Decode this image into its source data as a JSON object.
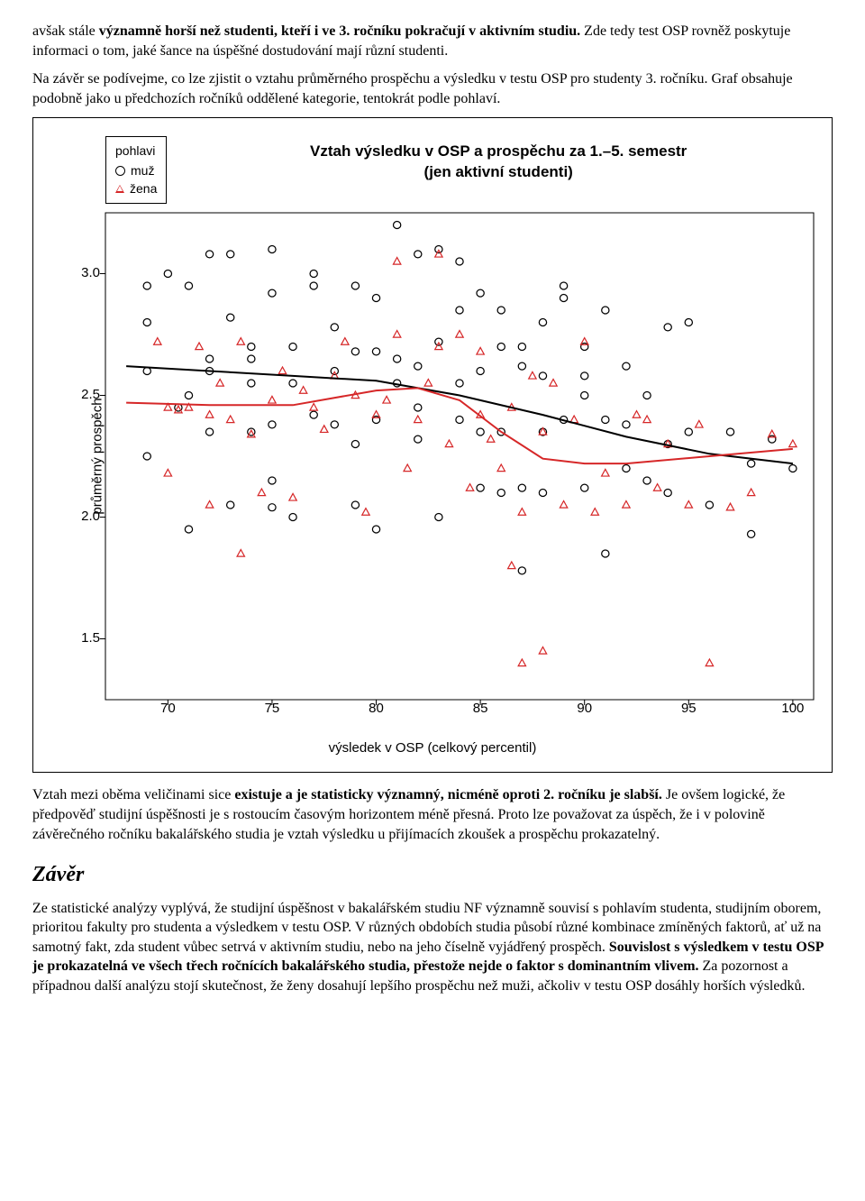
{
  "intro": {
    "p1_a": "avšak stále ",
    "p1_b": "významně horší než studenti, kteří i ve 3. ročníku pokračují v aktivním studiu.",
    "p1_c": " Zde tedy test OSP rovněž poskytuje informaci o tom, jaké šance na úspěšné dostudování mají různí studenti.",
    "p2": "Na závěr se podívejme, co lze zjistit o vztahu průměrného prospěchu a výsledku v testu OSP pro studenty 3. ročníku. Graf obsahuje podobně jako u předchozích ročníků oddělené kategorie, tentokrát podle pohlaví."
  },
  "chart": {
    "type": "scatter",
    "title_line1": "Vztah výsledku v OSP a prospěchu za 1.–5. semestr",
    "title_line2": "(jen aktivní studenti)",
    "title_fontsize": 17,
    "legend": {
      "title": "pohlavi",
      "items": [
        {
          "label": "muž",
          "marker": "circle",
          "color": "#000000"
        },
        {
          "label": "žena",
          "marker": "triangle",
          "color": "#d62728"
        }
      ]
    },
    "xlabel": "výsledek v OSP (celkový percentil)",
    "ylabel": "průměrný prospěch",
    "label_fontsize": 15,
    "tick_fontsize": 15,
    "xlim": [
      67,
      101
    ],
    "ylim": [
      1.25,
      3.25
    ],
    "xticks": [
      70,
      75,
      80,
      85,
      90,
      95,
      100
    ],
    "yticks": [
      1.5,
      2.0,
      2.5,
      3.0
    ],
    "ytick_labels": [
      "1.5",
      "2.0",
      "2.5",
      "3.0"
    ],
    "background_color": "#ffffff",
    "box_color": "#000000",
    "marker_size": 4,
    "line_width": 2,
    "series_muz": {
      "color": "#000000",
      "points": [
        [
          69,
          2.8
        ],
        [
          69,
          2.95
        ],
        [
          69,
          2.6
        ],
        [
          69,
          2.25
        ],
        [
          70,
          3.0
        ],
        [
          70.5,
          2.45
        ],
        [
          71,
          2.5
        ],
        [
          71,
          2.95
        ],
        [
          71,
          1.95
        ],
        [
          72,
          3.08
        ],
        [
          72,
          2.6
        ],
        [
          72,
          2.35
        ],
        [
          72,
          2.65
        ],
        [
          73,
          2.05
        ],
        [
          73,
          3.08
        ],
        [
          73,
          2.82
        ],
        [
          74,
          2.65
        ],
        [
          74,
          2.55
        ],
        [
          74,
          2.35
        ],
        [
          74,
          2.7
        ],
        [
          75,
          3.1
        ],
        [
          75,
          2.92
        ],
        [
          75,
          2.38
        ],
        [
          75,
          2.15
        ],
        [
          75,
          2.04
        ],
        [
          76,
          2.55
        ],
        [
          76,
          2.0
        ],
        [
          76,
          2.7
        ],
        [
          77,
          3.0
        ],
        [
          77,
          2.42
        ],
        [
          77,
          2.95
        ],
        [
          78,
          2.38
        ],
        [
          78,
          2.78
        ],
        [
          78,
          2.6
        ],
        [
          79,
          2.95
        ],
        [
          79,
          2.68
        ],
        [
          79,
          2.3
        ],
        [
          79,
          2.05
        ],
        [
          80,
          2.4
        ],
        [
          80,
          2.68
        ],
        [
          80,
          2.9
        ],
        [
          80,
          1.95
        ],
        [
          81,
          2.65
        ],
        [
          81,
          2.55
        ],
        [
          81,
          3.2
        ],
        [
          82,
          2.62
        ],
        [
          82,
          2.32
        ],
        [
          82,
          3.08
        ],
        [
          82,
          2.45
        ],
        [
          83,
          2.72
        ],
        [
          83,
          3.1
        ],
        [
          83,
          2.0
        ],
        [
          84,
          2.55
        ],
        [
          84,
          2.4
        ],
        [
          84,
          2.85
        ],
        [
          84,
          3.05
        ],
        [
          85,
          2.35
        ],
        [
          85,
          2.6
        ],
        [
          85,
          2.12
        ],
        [
          85,
          2.92
        ],
        [
          86,
          2.7
        ],
        [
          86,
          2.85
        ],
        [
          86,
          2.35
        ],
        [
          86,
          2.1
        ],
        [
          87,
          2.62
        ],
        [
          87,
          2.7
        ],
        [
          87,
          2.12
        ],
        [
          87,
          1.78
        ],
        [
          88,
          2.8
        ],
        [
          88,
          2.58
        ],
        [
          88,
          2.35
        ],
        [
          88,
          2.1
        ],
        [
          89,
          2.4
        ],
        [
          89,
          2.9
        ],
        [
          89,
          2.95
        ],
        [
          90,
          2.7
        ],
        [
          90,
          2.5
        ],
        [
          90,
          2.12
        ],
        [
          90,
          2.58
        ],
        [
          91,
          2.85
        ],
        [
          91,
          2.4
        ],
        [
          91,
          1.85
        ],
        [
          92,
          2.2
        ],
        [
          92,
          2.62
        ],
        [
          92,
          2.38
        ],
        [
          93,
          2.5
        ],
        [
          93,
          2.15
        ],
        [
          94,
          2.78
        ],
        [
          94,
          2.3
        ],
        [
          94,
          2.1
        ],
        [
          95,
          2.8
        ],
        [
          95,
          2.35
        ],
        [
          96,
          2.05
        ],
        [
          97,
          2.35
        ],
        [
          98,
          2.22
        ],
        [
          98,
          1.93
        ],
        [
          99,
          2.32
        ],
        [
          100,
          2.2
        ]
      ],
      "trend": [
        [
          68,
          2.62
        ],
        [
          72,
          2.6
        ],
        [
          76,
          2.58
        ],
        [
          80,
          2.56
        ],
        [
          84,
          2.5
        ],
        [
          88,
          2.42
        ],
        [
          92,
          2.33
        ],
        [
          96,
          2.26
        ],
        [
          100,
          2.22
        ]
      ]
    },
    "series_zena": {
      "color": "#d62728",
      "points": [
        [
          69.5,
          2.72
        ],
        [
          70,
          2.45
        ],
        [
          70,
          2.18
        ],
        [
          70.5,
          2.44
        ],
        [
          71,
          2.45
        ],
        [
          71.5,
          2.7
        ],
        [
          72,
          2.42
        ],
        [
          72,
          2.05
        ],
        [
          72.5,
          2.55
        ],
        [
          73,
          2.4
        ],
        [
          73.5,
          2.72
        ],
        [
          73.5,
          1.85
        ],
        [
          74,
          2.34
        ],
        [
          74.5,
          2.1
        ],
        [
          75,
          2.48
        ],
        [
          75.5,
          2.6
        ],
        [
          76,
          2.08
        ],
        [
          76.5,
          2.52
        ],
        [
          77,
          2.45
        ],
        [
          77.5,
          2.36
        ],
        [
          78,
          2.58
        ],
        [
          78.5,
          2.72
        ],
        [
          79,
          2.5
        ],
        [
          79.5,
          2.02
        ],
        [
          80,
          2.42
        ],
        [
          80.5,
          2.48
        ],
        [
          81,
          2.75
        ],
        [
          81,
          3.05
        ],
        [
          81.5,
          2.2
        ],
        [
          82,
          2.4
        ],
        [
          82.5,
          2.55
        ],
        [
          83,
          2.7
        ],
        [
          83,
          3.08
        ],
        [
          83.5,
          2.3
        ],
        [
          84,
          2.75
        ],
        [
          84.5,
          2.12
        ],
        [
          85,
          2.42
        ],
        [
          85,
          2.68
        ],
        [
          85.5,
          2.32
        ],
        [
          86,
          2.2
        ],
        [
          86.5,
          1.8
        ],
        [
          86.5,
          2.45
        ],
        [
          87,
          2.02
        ],
        [
          87,
          1.4
        ],
        [
          87.5,
          2.58
        ],
        [
          88,
          1.45
        ],
        [
          88,
          2.35
        ],
        [
          88.5,
          2.55
        ],
        [
          89,
          2.05
        ],
        [
          89.5,
          2.4
        ],
        [
          90,
          2.72
        ],
        [
          90.5,
          2.02
        ],
        [
          91,
          2.18
        ],
        [
          92,
          2.05
        ],
        [
          92.5,
          2.42
        ],
        [
          93,
          2.4
        ],
        [
          93.5,
          2.12
        ],
        [
          94,
          2.3
        ],
        [
          95,
          2.05
        ],
        [
          95.5,
          2.38
        ],
        [
          96,
          1.4
        ],
        [
          97,
          2.04
        ],
        [
          98,
          2.1
        ],
        [
          99,
          2.34
        ],
        [
          100,
          2.3
        ]
      ],
      "trend": [
        [
          68,
          2.47
        ],
        [
          72,
          2.46
        ],
        [
          76,
          2.46
        ],
        [
          80,
          2.52
        ],
        [
          82,
          2.53
        ],
        [
          84,
          2.48
        ],
        [
          86,
          2.35
        ],
        [
          88,
          2.24
        ],
        [
          90,
          2.22
        ],
        [
          92,
          2.22
        ],
        [
          96,
          2.25
        ],
        [
          100,
          2.28
        ]
      ]
    }
  },
  "after": {
    "p3_a": "Vztah mezi oběma veličinami sice ",
    "p3_b": "existuje a je statisticky významný, nicméně oproti 2. ročníku je slabší.",
    "p3_c": " Je ovšem logické, že předpověď studijní úspěšnosti je s rostoucím časovým horizontem méně přesná. Proto lze považovat za úspěch, že i v polovině závěrečného ročníku bakalářského studia je vztah výsledku u přijímacích zkoušek a prospěchu prokazatelný."
  },
  "zaver": {
    "heading": "Závěr",
    "p4_a": "Ze statistické analýzy vyplývá, že studijní úspěšnost v bakalářském studiu NF významně souvisí s pohlavím studenta, studijním oborem, prioritou fakulty pro studenta a výsledkem v testu OSP. V různých obdobích studia působí různé kombinace zmíněných faktorů, ať už na samotný fakt, zda student vůbec setrvá v aktivním studiu, nebo na jeho číselně vyjádřený prospěch. ",
    "p4_b": "Souvislost s výsledkem v testu OSP je prokazatelná ve všech třech ročnících bakalářského studia, přestože nejde o faktor s dominantním vlivem.",
    "p4_c": " Za pozornost a případnou další analýzu stojí skutečnost, že ženy dosahují lepšího prospěchu než muži, ačkoliv v testu OSP dosáhly horších výsledků."
  }
}
